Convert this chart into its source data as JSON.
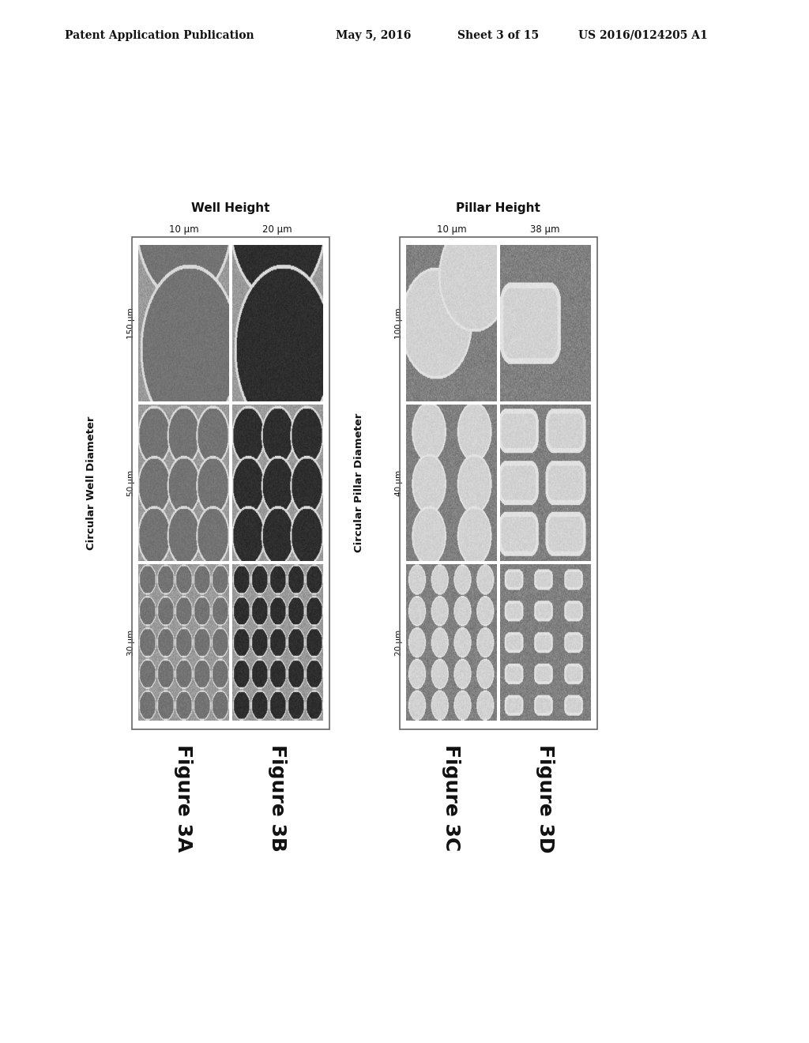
{
  "background_color": "#ffffff",
  "header_text": "Patent Application Publication",
  "header_date": "May 5, 2016",
  "header_sheet": "Sheet 3 of 15",
  "header_patent": "US 2016/0124205 A1",
  "left_panel_title": "Well Height",
  "right_panel_title": "Pillar Height",
  "left_col_labels": [
    "10 μm",
    "20 μm"
  ],
  "right_col_labels": [
    "10 μm",
    "38 μm"
  ],
  "left_row_labels": [
    "150 μm",
    "50 μm",
    "30 μm"
  ],
  "right_row_labels": [
    "100 μm",
    "40 μm",
    "20 μm"
  ],
  "left_y_label": "Circular Well Diameter",
  "right_y_label": "Circular Pillar Diameter",
  "fig_labels": [
    "Figure 3A",
    "Figure 3B",
    "Figure 3C",
    "Figure 3D"
  ],
  "text_color": "#111111"
}
